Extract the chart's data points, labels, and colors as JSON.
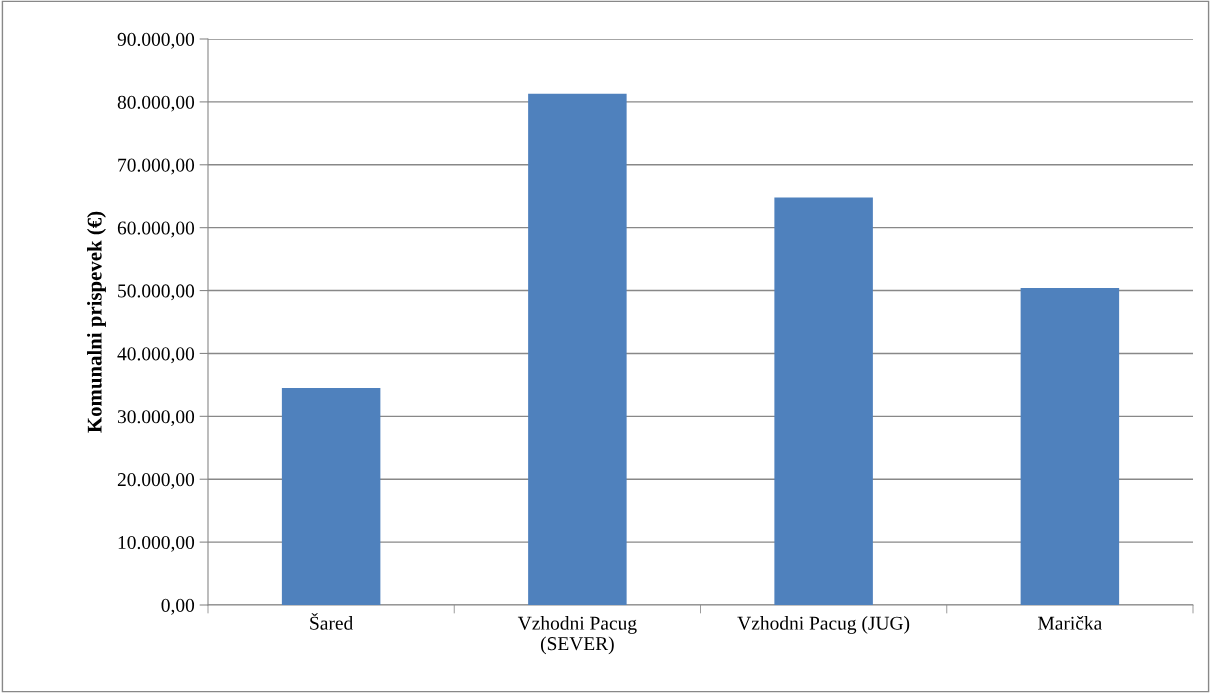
{
  "chart_data": {
    "type": "bar",
    "ylabel": "Komunalni prispevek (€)",
    "categories": [
      "Šared",
      "Vzhodni Pacug\n(SEVER)",
      "Vzhodni Pacug (JUG)",
      "Marička"
    ],
    "values": [
      34500,
      81300,
      64800,
      50400
    ],
    "color": "#4f81bd",
    "ylim": [
      0,
      90000
    ],
    "yticks": [
      {
        "value": 0,
        "label": "0,00"
      },
      {
        "value": 10000,
        "label": "10.000,00"
      },
      {
        "value": 20000,
        "label": "20.000,00"
      },
      {
        "value": 30000,
        "label": "30.000,00"
      },
      {
        "value": 40000,
        "label": "40.000,00"
      },
      {
        "value": 50000,
        "label": "50.000,00"
      },
      {
        "value": 60000,
        "label": "60.000,00"
      },
      {
        "value": 70000,
        "label": "70.000,00"
      },
      {
        "value": 80000,
        "label": "80.000,00"
      },
      {
        "value": 90000,
        "label": "90.000,00"
      }
    ],
    "grid": "y"
  }
}
